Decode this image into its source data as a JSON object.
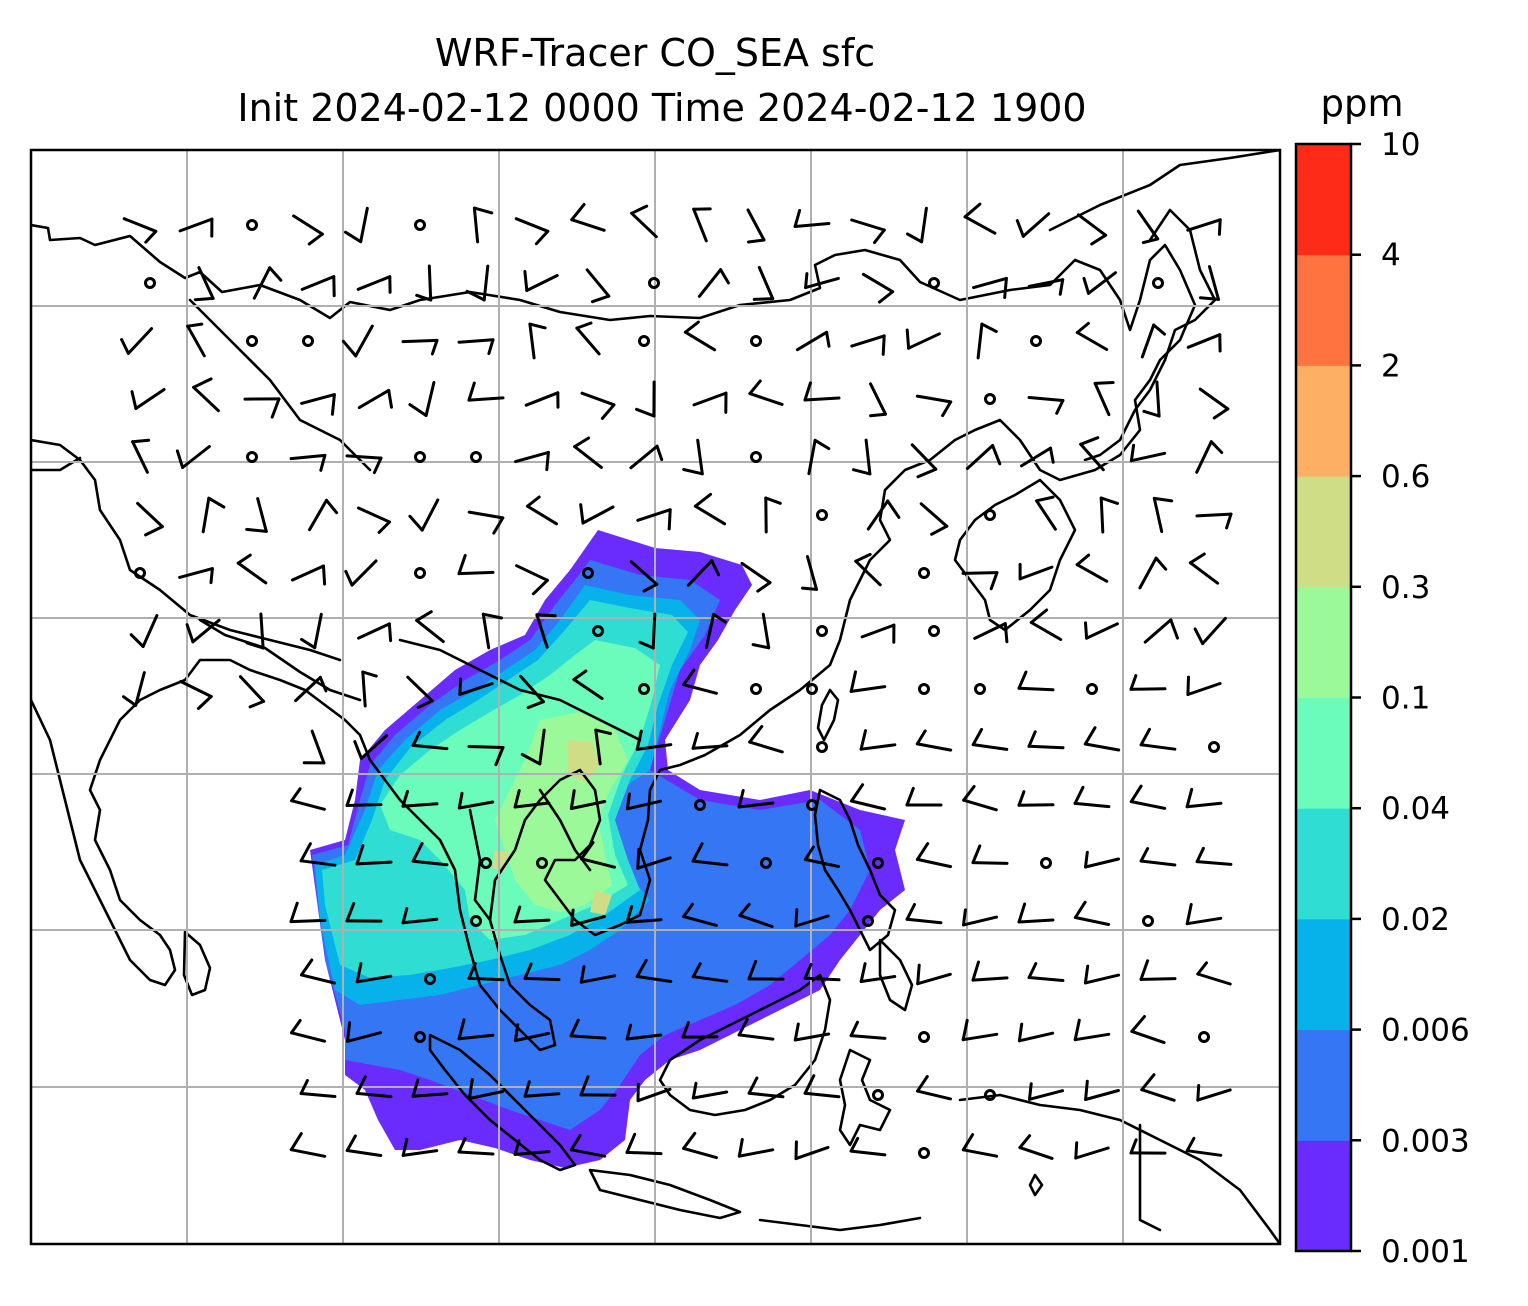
{
  "title_line1": "WRF-Tracer CO_SEA sfc",
  "title_line2": "Init 2024-02-12 0000 Time 2024-02-12 1900",
  "colorbar": {
    "unit": "ppm",
    "tick_labels": [
      "0.001",
      "0.003",
      "0.006",
      "0.02",
      "0.04",
      "0.1",
      "0.3",
      "0.6",
      "2",
      "4",
      "10"
    ],
    "colors": [
      "#6a2cfc",
      "#3476f4",
      "#07b1ea",
      "#30ddd2",
      "#6bfbbb",
      "#9cf999",
      "#cfdd86",
      "#fdb064",
      "#fe7340",
      "#fd2b17"
    ]
  },
  "map": {
    "gridlines": true,
    "plume": {
      "region": "Southeast Asia",
      "max_class": "0.3 – 0.6 ppm"
    },
    "wind_barbs": true
  }
}
